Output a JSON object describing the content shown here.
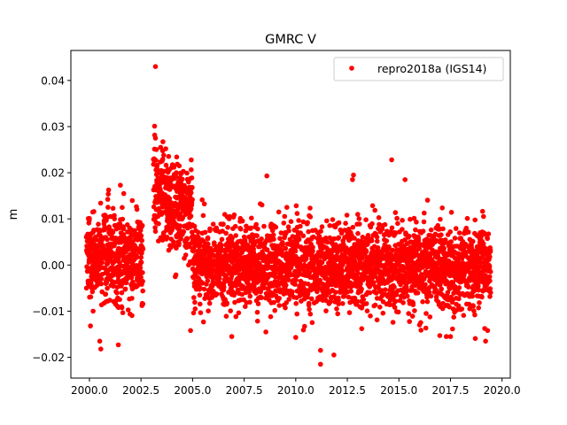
{
  "chart_data": {
    "type": "scatter",
    "title": "GMRC V",
    "xlabel": "",
    "ylabel": "m",
    "xlim": [
      1999.1,
      2020.4
    ],
    "ylim": [
      -0.0245,
      0.0465
    ],
    "xticks": [
      2000.0,
      2002.5,
      2005.0,
      2007.5,
      2010.0,
      2012.5,
      2015.0,
      2017.5,
      2020.0
    ],
    "xtick_labels": [
      "2000.0",
      "2002.5",
      "2005.0",
      "2007.5",
      "2010.0",
      "2012.5",
      "2015.0",
      "2017.5",
      "2020.0"
    ],
    "yticks": [
      -0.02,
      -0.01,
      0.0,
      0.01,
      0.02,
      0.03,
      0.04
    ],
    "ytick_labels": [
      "−0.02",
      "−0.01",
      "0.00",
      "0.01",
      "0.02",
      "0.03",
      "0.04"
    ],
    "grid": false,
    "legend_position": "top-right",
    "marker_color": "#ff0000",
    "series": [
      {
        "name": "repro2018a (IGS14)",
        "color": "#ff0000",
        "marker": "circle",
        "segments": [
          {
            "x_start": 1999.85,
            "x_end": 2002.6,
            "mean": 0.0015,
            "trend": 0.0,
            "sd": 0.0047,
            "density_per_year": 190
          },
          {
            "x_start": 2003.1,
            "x_end": 2005.0,
            "mean": 0.0135,
            "trend": -0.0068,
            "sd": 0.0053,
            "density_per_year": 190
          },
          {
            "x_start": 2005.0,
            "x_end": 2019.45,
            "mean": -0.0002,
            "trend": 2e-05,
            "sd": 0.0045,
            "density_per_year": 190
          }
        ],
        "notable_points": [
          [
            2003.2,
            0.043
          ],
          [
            2003.2,
            0.0275
          ],
          [
            2003.45,
            0.0255
          ],
          [
            2003.7,
            0.0252
          ],
          [
            2004.35,
            0.0215
          ],
          [
            2014.65,
            0.0228
          ],
          [
            2008.6,
            0.0193
          ],
          [
            2012.8,
            0.0195
          ],
          [
            2012.75,
            0.0185
          ],
          [
            2015.3,
            0.0185
          ],
          [
            2001.5,
            0.0173
          ],
          [
            2003.6,
            0.0238
          ],
          [
            2011.2,
            -0.0215
          ],
          [
            2011.2,
            -0.0185
          ],
          [
            2011.85,
            -0.0195
          ],
          [
            2000.55,
            -0.0182
          ],
          [
            2001.4,
            -0.0173
          ],
          [
            2019.2,
            -0.0165
          ],
          [
            2000.5,
            -0.0165
          ],
          [
            2010.0,
            -0.0157
          ],
          [
            2017.5,
            -0.0155
          ],
          [
            2017.3,
            -0.0155
          ],
          [
            2006.9,
            -0.0155
          ],
          [
            2004.9,
            -0.0142
          ],
          [
            2013.2,
            -0.0138
          ],
          [
            2019.3,
            -0.0142
          ],
          [
            2000.05,
            -0.0132
          ],
          [
            2008.55,
            -0.0145
          ]
        ]
      }
    ]
  }
}
